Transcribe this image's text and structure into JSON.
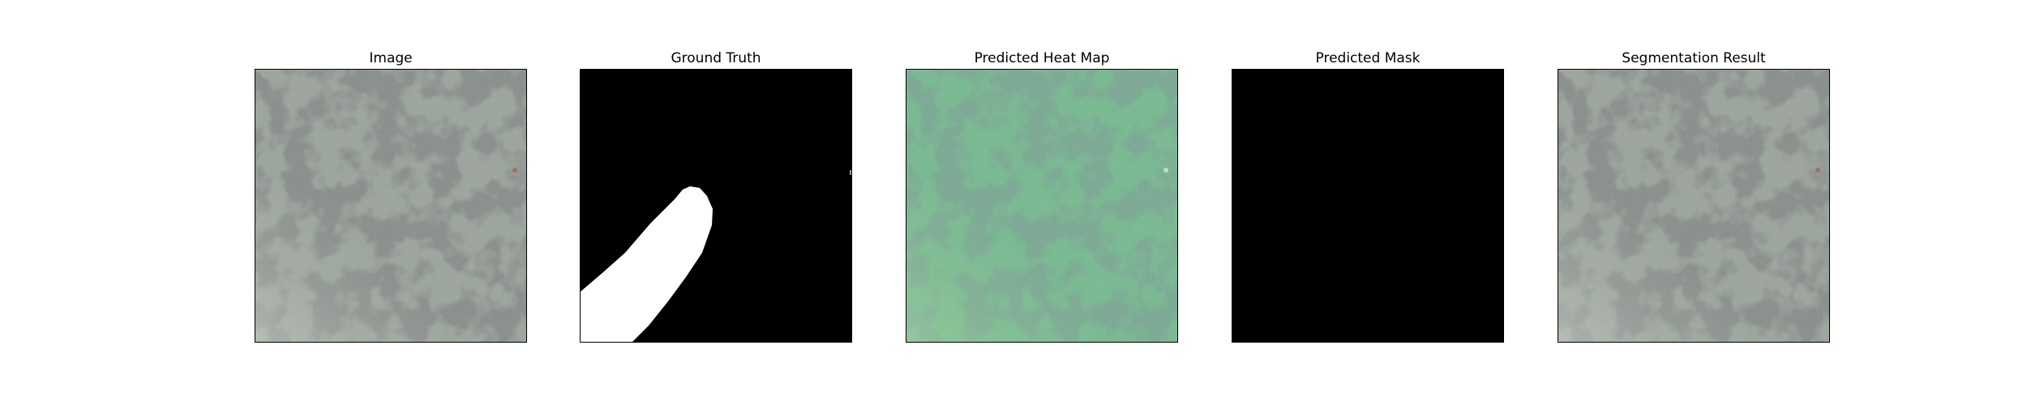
{
  "panels": [
    {
      "title": "Image",
      "content": "aerial-terrain-image"
    },
    {
      "title": "Ground Truth",
      "content": "binary-mask"
    },
    {
      "title": "Predicted Heat Map",
      "content": "heatmap-overlay"
    },
    {
      "title": "Predicted Mask",
      "content": "empty-mask"
    },
    {
      "title": "Segmentation Result",
      "content": "aerial-terrain-image"
    }
  ],
  "colors": {
    "terrain_base": "#8f9a90",
    "terrain_dark": "#2f3532",
    "heatmap_base": "#6fb48a",
    "heatmap_dark": "#2c5c45",
    "mask_background": "#000000",
    "mask_foreground": "#ffffff"
  }
}
